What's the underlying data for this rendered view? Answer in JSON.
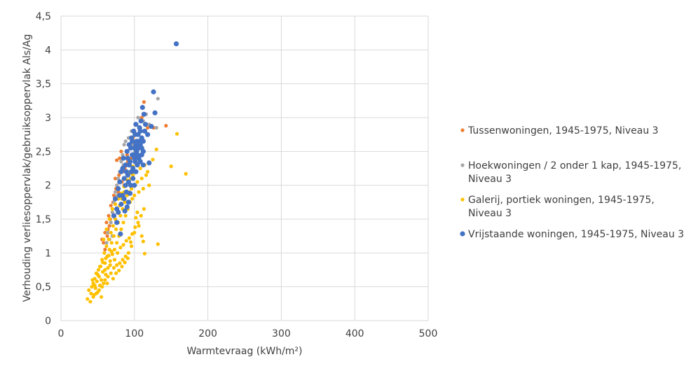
{
  "chart_data": {
    "type": "scatter",
    "title": "",
    "xlabel": "Warmtevraag (kWh/m²)",
    "ylabel": "Verhouding verliesoppervlak/gebruiksoppervlak Als/Ag",
    "xlim": [
      0,
      500
    ],
    "ylim": [
      0,
      4.5
    ],
    "x_ticks": [
      0,
      100,
      200,
      300,
      400,
      500
    ],
    "x_tick_labels": [
      "0",
      "100",
      "200",
      "300",
      "400",
      "500"
    ],
    "y_ticks": [
      0,
      0.5,
      1,
      1.5,
      2,
      2.5,
      3,
      3.5,
      4,
      4.5
    ],
    "y_tick_labels": [
      "0",
      "0,5",
      "1",
      "1,5",
      "2",
      "2,5",
      "3",
      "3,5",
      "4",
      "4,5"
    ],
    "grid": "vertical-and-horizontal",
    "legend_position": "right",
    "series": [
      {
        "name": "Tussenwoningen, 1945-1975, Niveau 3",
        "color": "#ED7D31",
        "marker": "small",
        "points": [
          [
            56,
            1.2
          ],
          [
            58,
            1.15
          ],
          [
            60,
            1.3
          ],
          [
            62,
            1.45
          ],
          [
            63,
            1.25
          ],
          [
            65,
            1.55
          ],
          [
            66,
            1.4
          ],
          [
            68,
            1.7
          ],
          [
            70,
            1.6
          ],
          [
            72,
            1.85
          ],
          [
            74,
            2.1
          ],
          [
            76,
            2.37
          ],
          [
            78,
            1.9
          ],
          [
            80,
            2.4
          ],
          [
            82,
            2.5
          ],
          [
            84,
            2.2
          ],
          [
            86,
            2.0
          ],
          [
            88,
            2.3
          ],
          [
            90,
            2.45
          ],
          [
            92,
            2.6
          ],
          [
            95,
            2.55
          ],
          [
            98,
            2.7
          ],
          [
            100,
            2.8
          ],
          [
            103,
            2.9
          ],
          [
            106,
            2.75
          ],
          [
            110,
            3.0
          ],
          [
            113,
            3.23
          ],
          [
            118,
            2.85
          ],
          [
            126,
            2.85
          ],
          [
            143,
            2.88
          ],
          [
            60,
            1.05
          ],
          [
            64,
            1.35
          ],
          [
            67,
            1.5
          ],
          [
            71,
            1.75
          ],
          [
            75,
            1.95
          ],
          [
            79,
            2.15
          ],
          [
            83,
            2.05
          ],
          [
            87,
            2.25
          ],
          [
            91,
            2.35
          ],
          [
            96,
            2.4
          ]
        ]
      },
      {
        "name": "Hoekwoningen / 2 onder 1 kap, 1945-1975, Niveau 3",
        "color": "#A5A5A5",
        "marker": "small",
        "points": [
          [
            62,
            1.15
          ],
          [
            64,
            1.3
          ],
          [
            66,
            1.2
          ],
          [
            68,
            1.45
          ],
          [
            70,
            1.6
          ],
          [
            72,
            1.75
          ],
          [
            74,
            1.9
          ],
          [
            76,
            2.0
          ],
          [
            78,
            2.1
          ],
          [
            80,
            2.2
          ],
          [
            82,
            2.35
          ],
          [
            84,
            2.45
          ],
          [
            86,
            2.6
          ],
          [
            88,
            2.65
          ],
          [
            90,
            2.5
          ],
          [
            92,
            2.7
          ],
          [
            94,
            2.55
          ],
          [
            96,
            2.8
          ],
          [
            98,
            2.6
          ],
          [
            100,
            2.75
          ],
          [
            102,
            2.9
          ],
          [
            105,
            3.0
          ],
          [
            108,
            2.85
          ],
          [
            112,
            2.95
          ],
          [
            116,
            3.05
          ],
          [
            120,
            2.9
          ],
          [
            130,
            2.85
          ],
          [
            132,
            3.28
          ],
          [
            70,
            1.25
          ],
          [
            73,
            1.55
          ],
          [
            77,
            1.85
          ],
          [
            81,
            2.05
          ],
          [
            85,
            2.3
          ],
          [
            89,
            2.4
          ],
          [
            93,
            2.2
          ],
          [
            97,
            2.45
          ],
          [
            101,
            2.5
          ],
          [
            104,
            2.65
          ]
        ]
      },
      {
        "name": "Galerij, portiek woningen, 1945-1975, Niveau 3",
        "color": "#FFC000",
        "marker": "small",
        "points": [
          [
            36,
            0.32
          ],
          [
            38,
            0.45
          ],
          [
            40,
            0.28
          ],
          [
            42,
            0.5
          ],
          [
            44,
            0.55
          ],
          [
            45,
            0.38
          ],
          [
            46,
            0.62
          ],
          [
            47,
            0.48
          ],
          [
            48,
            0.7
          ],
          [
            49,
            0.58
          ],
          [
            50,
            0.42
          ],
          [
            51,
            0.75
          ],
          [
            52,
            0.65
          ],
          [
            53,
            0.52
          ],
          [
            54,
            0.8
          ],
          [
            55,
            0.6
          ],
          [
            56,
            0.9
          ],
          [
            57,
            0.72
          ],
          [
            58,
            0.55
          ],
          [
            59,
            1.0
          ],
          [
            60,
            0.85
          ],
          [
            61,
            0.68
          ],
          [
            62,
            1.1
          ],
          [
            63,
            0.95
          ],
          [
            64,
            0.78
          ],
          [
            65,
            1.2
          ],
          [
            66,
            1.05
          ],
          [
            67,
            0.88
          ],
          [
            68,
            1.3
          ],
          [
            69,
            1.15
          ],
          [
            70,
            0.98
          ],
          [
            71,
            1.4
          ],
          [
            72,
            1.25
          ],
          [
            73,
            1.05
          ],
          [
            74,
            1.5
          ],
          [
            75,
            1.35
          ],
          [
            76,
            1.15
          ],
          [
            77,
            1.6
          ],
          [
            78,
            1.45
          ],
          [
            79,
            1.25
          ],
          [
            80,
            1.7
          ],
          [
            81,
            1.55
          ],
          [
            82,
            1.35
          ],
          [
            83,
            1.8
          ],
          [
            84,
            1.65
          ],
          [
            85,
            1.45
          ],
          [
            86,
            1.9
          ],
          [
            87,
            1.75
          ],
          [
            88,
            1.55
          ],
          [
            89,
            2.0
          ],
          [
            90,
            1.85
          ],
          [
            91,
            1.65
          ],
          [
            92,
            2.05
          ],
          [
            93,
            1.9
          ],
          [
            94,
            1.75
          ],
          [
            95,
            2.1
          ],
          [
            96,
            1.95
          ],
          [
            97,
            1.8
          ],
          [
            98,
            2.15
          ],
          [
            99,
            2.0
          ],
          [
            100,
            1.85
          ],
          [
            102,
            2.2
          ],
          [
            104,
            2.05
          ],
          [
            106,
            1.9
          ],
          [
            108,
            2.25
          ],
          [
            110,
            2.1
          ],
          [
            112,
            1.95
          ],
          [
            114,
            2.3
          ],
          [
            116,
            2.15
          ],
          [
            118,
            2.2
          ],
          [
            120,
            2.0
          ],
          [
            125,
            2.38
          ],
          [
            130,
            2.53
          ],
          [
            132,
            1.13
          ],
          [
            150,
            2.28
          ],
          [
            158,
            2.76
          ],
          [
            170,
            2.17
          ],
          [
            114,
            0.99
          ],
          [
            112,
            1.17
          ],
          [
            110,
            1.25
          ],
          [
            106,
            1.4
          ],
          [
            104,
            1.6
          ],
          [
            102,
            1.52
          ],
          [
            100,
            1.3
          ],
          [
            96,
            1.1
          ],
          [
            92,
            1.0
          ],
          [
            88,
            0.95
          ],
          [
            84,
            0.9
          ],
          [
            80,
            0.85
          ],
          [
            76,
            0.82
          ],
          [
            72,
            0.78
          ],
          [
            68,
            0.7
          ],
          [
            64,
            0.65
          ],
          [
            60,
            0.6
          ],
          [
            56,
            0.5
          ],
          [
            52,
            0.45
          ],
          [
            48,
            0.4
          ],
          [
            44,
            0.35
          ],
          [
            41,
            0.4
          ],
          [
            43,
            0.6
          ],
          [
            46,
            0.52
          ],
          [
            50,
            0.68
          ],
          [
            53,
            0.8
          ],
          [
            57,
            0.86
          ],
          [
            61,
            0.92
          ],
          [
            65,
            0.96
          ],
          [
            69,
            1.02
          ],
          [
            73,
            0.9
          ],
          [
            77,
            1.0
          ],
          [
            81,
            1.08
          ],
          [
            85,
            1.12
          ],
          [
            89,
            1.18
          ],
          [
            93,
            1.22
          ],
          [
            97,
            1.28
          ],
          [
            101,
            1.38
          ],
          [
            105,
            1.45
          ],
          [
            109,
            1.55
          ],
          [
            113,
            1.65
          ],
          [
            60,
            0.75
          ],
          [
            58,
            1.2
          ],
          [
            62,
            1.35
          ],
          [
            66,
            1.5
          ],
          [
            70,
            1.65
          ],
          [
            74,
            1.72
          ],
          [
            78,
            1.8
          ],
          [
            82,
            1.88
          ],
          [
            86,
            1.98
          ],
          [
            90,
            2.08
          ],
          [
            94,
            2.18
          ],
          [
            98,
            2.28
          ],
          [
            102,
            2.35
          ],
          [
            106,
            2.4
          ],
          [
            110,
            2.45
          ],
          [
            55,
            0.35
          ],
          [
            63,
            0.55
          ],
          [
            67,
            0.82
          ],
          [
            71,
            0.62
          ],
          [
            75,
            0.7
          ],
          [
            79,
            0.74
          ],
          [
            83,
            0.8
          ],
          [
            87,
            0.86
          ],
          [
            91,
            0.92
          ],
          [
            95,
            1.16
          ]
        ]
      },
      {
        "name": "Vrijstaande woningen, 1945-1975, Niveau 3",
        "color": "#4472C4",
        "marker": "large",
        "points": [
          [
            72,
            1.55
          ],
          [
            74,
            1.8
          ],
          [
            76,
            1.65
          ],
          [
            78,
            1.95
          ],
          [
            80,
            2.05
          ],
          [
            81,
            1.28
          ],
          [
            82,
            2.2
          ],
          [
            84,
            1.85
          ],
          [
            85,
            2.4
          ],
          [
            86,
            2.1
          ],
          [
            87,
            1.62
          ],
          [
            88,
            2.3
          ],
          [
            89,
            1.9
          ],
          [
            90,
            2.5
          ],
          [
            91,
            2.15
          ],
          [
            92,
            1.75
          ],
          [
            93,
            2.6
          ],
          [
            94,
            2.35
          ],
          [
            95,
            2.0
          ],
          [
            96,
            2.7
          ],
          [
            97,
            2.45
          ],
          [
            98,
            2.25
          ],
          [
            99,
            2.8
          ],
          [
            100,
            2.55
          ],
          [
            101,
            2.35
          ],
          [
            102,
            2.9
          ],
          [
            103,
            2.65
          ],
          [
            104,
            2.45
          ],
          [
            105,
            2.75
          ],
          [
            106,
            2.55
          ],
          [
            107,
            2.85
          ],
          [
            108,
            2.6
          ],
          [
            109,
            2.95
          ],
          [
            110,
            2.7
          ],
          [
            111,
            3.15
          ],
          [
            112,
            2.5
          ],
          [
            113,
            3.05
          ],
          [
            114,
            2.8
          ],
          [
            115,
            2.9
          ],
          [
            118,
            2.75
          ],
          [
            120,
            2.33
          ],
          [
            123,
            2.87
          ],
          [
            126,
            3.38
          ],
          [
            128,
            3.07
          ],
          [
            157,
            4.09
          ],
          [
            90,
            1.68
          ],
          [
            92,
            2.05
          ],
          [
            94,
            1.88
          ],
          [
            96,
            2.2
          ],
          [
            98,
            2.1
          ],
          [
            100,
            2.4
          ],
          [
            102,
            2.2
          ],
          [
            104,
            2.3
          ],
          [
            106,
            2.4
          ],
          [
            108,
            2.35
          ],
          [
            110,
            2.45
          ],
          [
            112,
            2.3
          ],
          [
            95,
            2.55
          ],
          [
            97,
            2.65
          ],
          [
            99,
            2.45
          ],
          [
            101,
            2.75
          ],
          [
            103,
            2.5
          ],
          [
            105,
            2.6
          ],
          [
            88,
            2.0
          ],
          [
            86,
            1.8
          ],
          [
            84,
            2.25
          ],
          [
            82,
            1.72
          ],
          [
            80,
            1.85
          ],
          [
            78,
            1.6
          ],
          [
            76,
            1.45
          ],
          [
            93,
            2.3
          ],
          [
            91,
            2.4
          ],
          [
            89,
            2.2
          ],
          [
            100,
            2.0
          ],
          [
            102,
            2.6
          ],
          [
            106,
            2.65
          ],
          [
            108,
            2.8
          ],
          [
            110,
            2.55
          ],
          [
            112,
            2.65
          ]
        ]
      }
    ]
  }
}
